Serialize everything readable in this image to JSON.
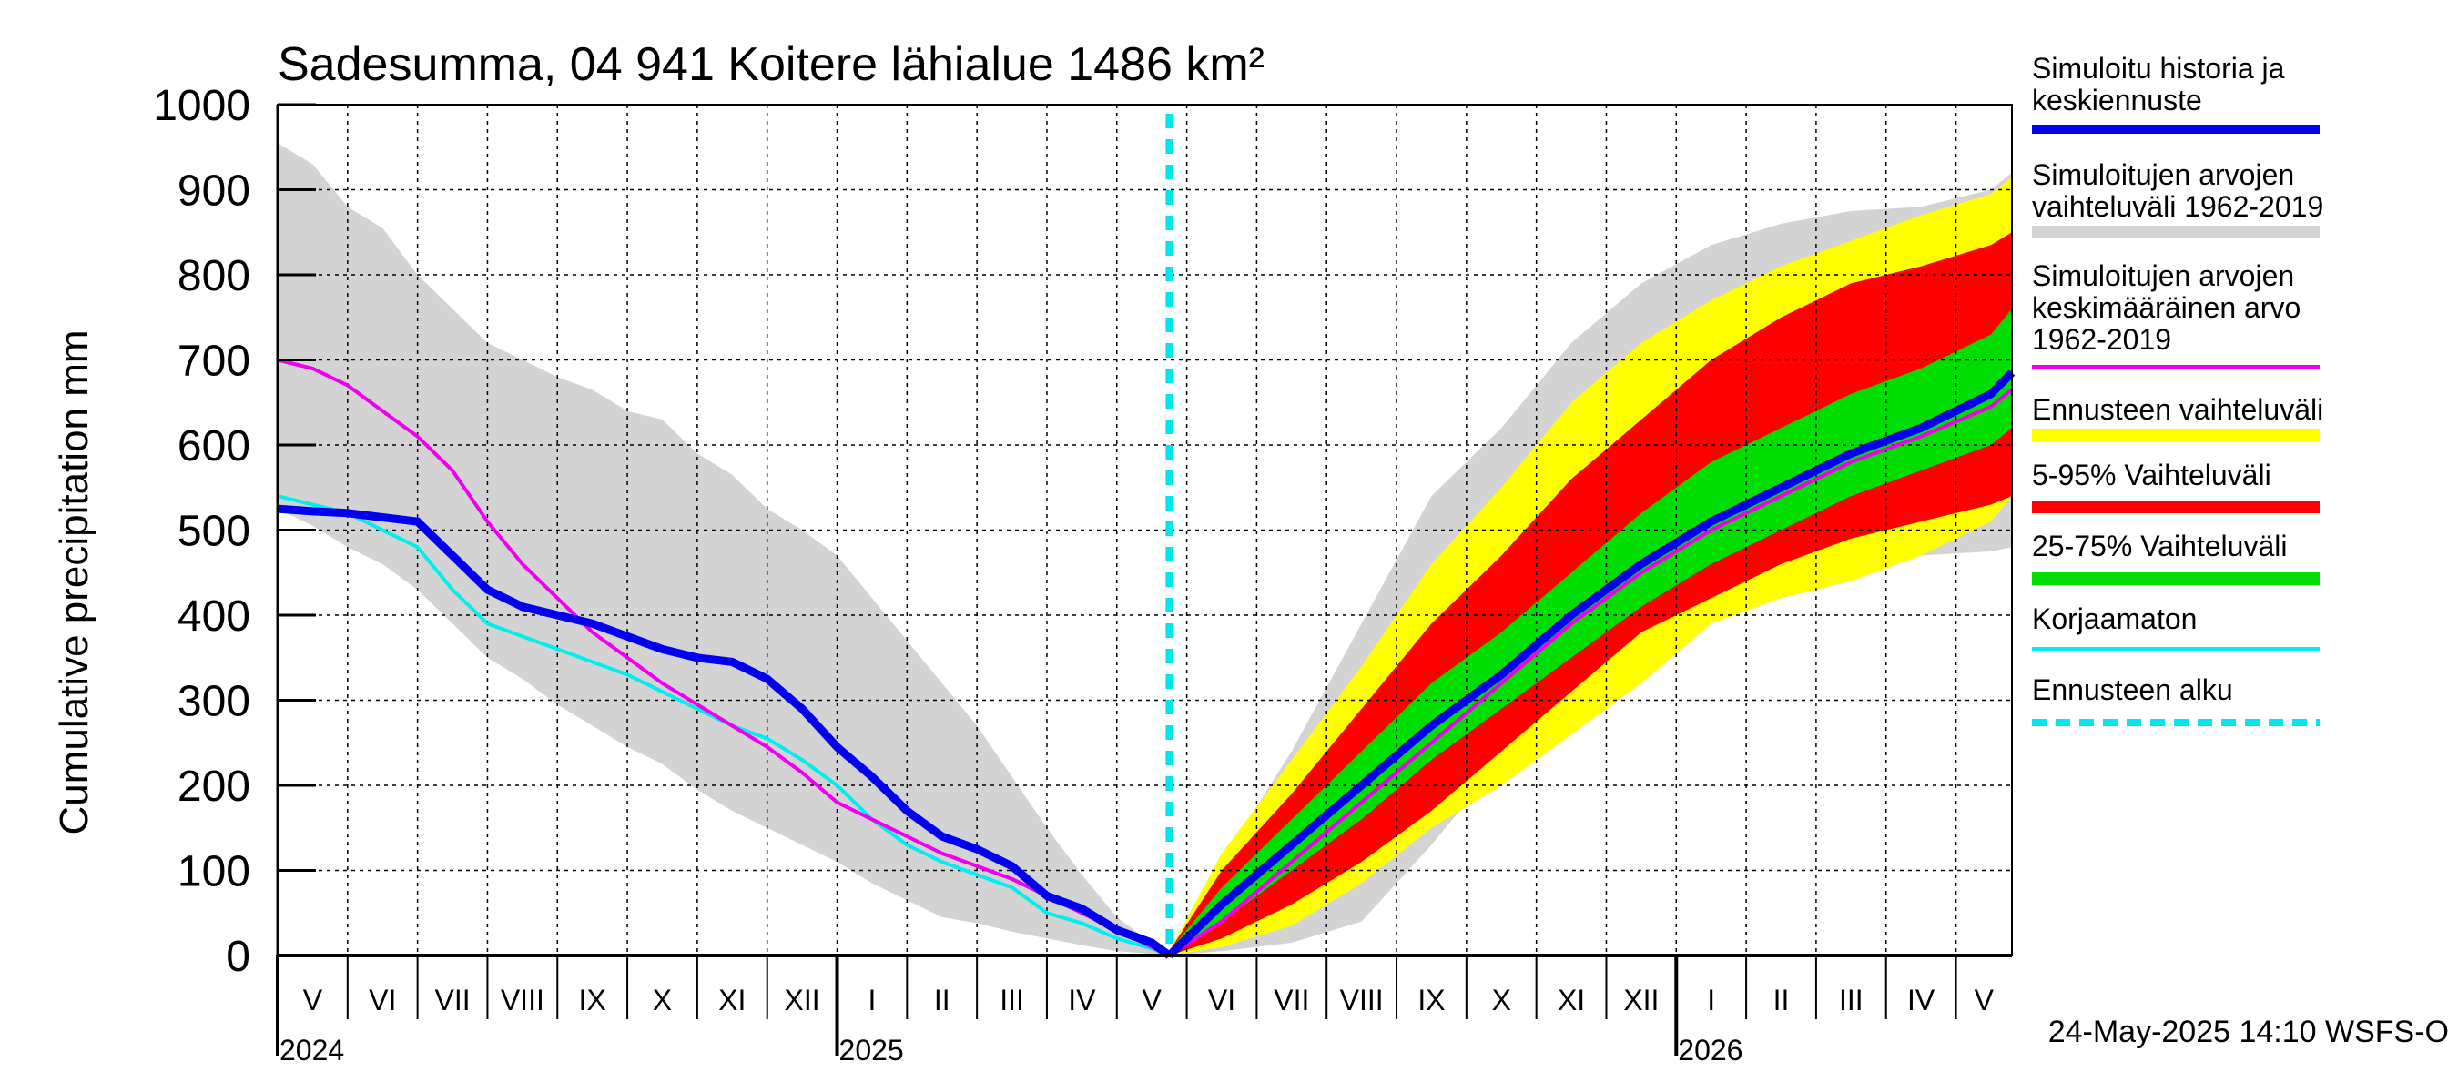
{
  "chart_data": {
    "type": "area",
    "title": "Sadesumma, 04 941 Koitere lähialue 1486 km²",
    "ylabel": "Cumulative precipitation   mm",
    "ylim": [
      0,
      1000
    ],
    "yticks": [
      0,
      100,
      200,
      300,
      400,
      500,
      600,
      700,
      800,
      900,
      1000
    ],
    "x_range_months": [
      0,
      24.8
    ],
    "forecast_start_month": 12.75,
    "month_labels": [
      "V",
      "VI",
      "VII",
      "VIII",
      "IX",
      "X",
      "XI",
      "XII",
      "I",
      "II",
      "III",
      "IV",
      "V",
      "VI",
      "VII",
      "VIII",
      "IX",
      "X",
      "XI",
      "XII",
      "I",
      "II",
      "III",
      "IV",
      "V"
    ],
    "years": [
      {
        "label": "2024",
        "month": 0
      },
      {
        "label": "2025",
        "month": 8
      },
      {
        "label": "2026",
        "month": 20
      }
    ],
    "footer": "24-May-2025 14:10 WSFS-O",
    "colors": {
      "history": "#0000ee",
      "range": "#d3d3d3",
      "mean": "#ee00ee",
      "ensemble": "#ffff00",
      "p5_95": "#ff0000",
      "p25_75": "#00dd00",
      "uncorrected": "#00eeee",
      "forecast_start": "#00e5ee"
    },
    "legend": [
      {
        "key": "history",
        "label": "Simuloitu historia ja\nkeskiennuste"
      },
      {
        "key": "range",
        "label": "Simuloitujen arvojen\nvaihteluväli 1962-2019"
      },
      {
        "key": "mean",
        "label": "Simuloitujen arvojen\nkeskimääräinen arvo\n   1962-2019"
      },
      {
        "key": "ensemble",
        "label": "Ennusteen vaihteluväli"
      },
      {
        "key": "p5_95",
        "label": "5-95% Vaihteluväli"
      },
      {
        "key": "p25_75",
        "label": "25-75% Vaihteluväli"
      },
      {
        "key": "uncorrected",
        "label": "Korjaamaton"
      },
      {
        "key": "forecast_start",
        "label": "Ennusteen alku"
      }
    ],
    "series": {
      "history_range_hist": {
        "x": [
          0,
          0.5,
          1,
          1.5,
          2,
          2.5,
          3,
          3.5,
          4,
          4.5,
          5,
          5.5,
          6,
          6.5,
          7,
          7.5,
          8,
          8.5,
          9,
          9.5,
          10,
          10.5,
          11,
          11.5,
          12,
          12.5,
          12.75
        ],
        "upper": [
          955,
          930,
          880,
          855,
          800,
          760,
          720,
          700,
          680,
          665,
          640,
          630,
          590,
          565,
          525,
          500,
          470,
          420,
          370,
          320,
          270,
          210,
          150,
          95,
          45,
          15,
          5
        ],
        "lower": [
          525,
          505,
          480,
          460,
          430,
          390,
          350,
          325,
          295,
          270,
          245,
          225,
          195,
          170,
          150,
          130,
          110,
          85,
          65,
          45,
          38,
          28,
          20,
          12,
          5,
          2,
          0
        ]
      },
      "history": {
        "x": [
          0,
          0.5,
          1,
          1.5,
          2,
          2.5,
          3,
          3.5,
          4,
          4.5,
          5,
          5.5,
          6,
          6.5,
          7,
          7.5,
          8,
          8.5,
          9,
          9.5,
          10,
          10.5,
          11,
          11.5,
          12,
          12.5,
          12.75
        ],
        "values": [
          525,
          522,
          520,
          515,
          510,
          470,
          430,
          410,
          400,
          390,
          375,
          360,
          350,
          345,
          325,
          290,
          245,
          210,
          170,
          140,
          125,
          105,
          70,
          55,
          30,
          15,
          0
        ]
      },
      "uncorrected": {
        "x": [
          0,
          0.5,
          1,
          1.5,
          2,
          2.5,
          3,
          3.5,
          4,
          4.5,
          5,
          5.5,
          6,
          6.5,
          7,
          7.5,
          8,
          8.5,
          9,
          9.5,
          10,
          10.5,
          11,
          11.5,
          12,
          12.5,
          12.75
        ],
        "values": [
          540,
          530,
          520,
          500,
          480,
          430,
          390,
          375,
          360,
          345,
          330,
          310,
          290,
          270,
          255,
          230,
          200,
          160,
          130,
          110,
          95,
          80,
          50,
          38,
          20,
          8,
          0
        ]
      },
      "mean": {
        "x": [
          0,
          0.5,
          1,
          1.5,
          2,
          2.5,
          3,
          3.5,
          4,
          4.5,
          5,
          5.5,
          6,
          6.5,
          7,
          7.5,
          8,
          8.5,
          9,
          9.5,
          10,
          10.5,
          11,
          11.5,
          12,
          12.5,
          12.75,
          13.5,
          14.5,
          15.5,
          16.5,
          17.5,
          18.5,
          19.5,
          20.5,
          21.5,
          22.5,
          23.5,
          24.5,
          24.8
        ],
        "values": [
          700,
          690,
          670,
          640,
          610,
          570,
          510,
          460,
          420,
          380,
          350,
          320,
          295,
          270,
          245,
          215,
          180,
          160,
          140,
          120,
          105,
          90,
          70,
          50,
          30,
          10,
          0,
          40,
          110,
          180,
          250,
          320,
          390,
          450,
          500,
          540,
          580,
          610,
          645,
          665
        ]
      },
      "forecast_range": {
        "x": [
          12.75,
          13.5,
          14.5,
          15.5,
          16.5,
          17.5,
          18.5,
          19.5,
          20.5,
          21.5,
          22.5,
          23.5,
          24.5,
          24.8
        ],
        "upper": [
          5,
          110,
          240,
          390,
          540,
          620,
          720,
          790,
          835,
          860,
          875,
          880,
          900,
          920
        ],
        "lower": [
          0,
          5,
          15,
          40,
          130,
          230,
          320,
          390,
          420,
          450,
          465,
          470,
          475,
          480
        ]
      },
      "ensemble": {
        "x": [
          12.75,
          13.5,
          14.5,
          15.5,
          16.5,
          17.5,
          18.5,
          19.5,
          20.5,
          21.5,
          22.5,
          23.5,
          24.5,
          24.8
        ],
        "upper": [
          5,
          120,
          230,
          340,
          460,
          550,
          650,
          720,
          770,
          810,
          840,
          870,
          895,
          915
        ],
        "lower": [
          0,
          10,
          35,
          85,
          150,
          200,
          260,
          320,
          390,
          420,
          440,
          470,
          510,
          540
        ]
      },
      "p5_95": {
        "x": [
          12.75,
          13.5,
          14.5,
          15.5,
          16.5,
          17.5,
          18.5,
          19.5,
          20.5,
          21.5,
          22.5,
          23.5,
          24.5,
          24.8
        ],
        "upper": [
          5,
          100,
          190,
          290,
          390,
          470,
          560,
          630,
          700,
          750,
          790,
          810,
          835,
          850
        ],
        "lower": [
          0,
          20,
          60,
          110,
          170,
          240,
          310,
          380,
          420,
          460,
          490,
          510,
          530,
          540
        ]
      },
      "p25_75": {
        "x": [
          12.75,
          13.5,
          14.5,
          15.5,
          16.5,
          17.5,
          18.5,
          19.5,
          20.5,
          21.5,
          22.5,
          23.5,
          24.5,
          24.8
        ],
        "upper": [
          5,
          80,
          160,
          240,
          320,
          380,
          450,
          520,
          580,
          620,
          660,
          690,
          730,
          760
        ],
        "lower": [
          0,
          40,
          100,
          160,
          230,
          290,
          350,
          410,
          460,
          500,
          540,
          570,
          600,
          620
        ]
      },
      "forecast_median": {
        "x": [
          12.75,
          13.5,
          14.5,
          15.5,
          16.5,
          17.5,
          18.5,
          19.5,
          20.5,
          21.5,
          22.5,
          23.5,
          24.5,
          24.8
        ],
        "values": [
          0,
          60,
          130,
          200,
          270,
          330,
          400,
          460,
          510,
          550,
          590,
          620,
          660,
          685
        ]
      }
    }
  }
}
